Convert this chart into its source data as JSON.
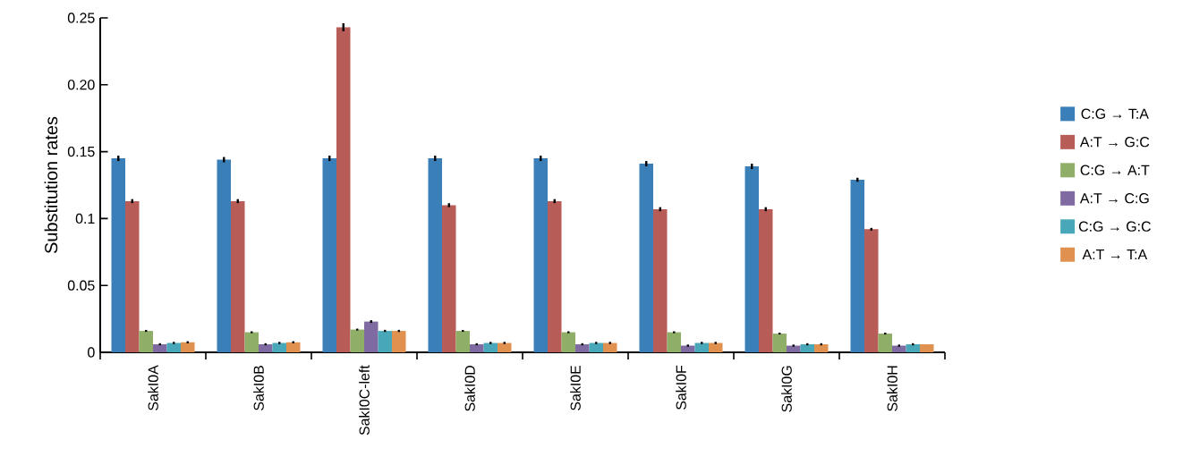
{
  "chart_data": {
    "type": "bar",
    "ylabel": "Substitution rates",
    "categories": [
      "SakI0A",
      "SakI0B",
      "SakI0C-left",
      "SakI0D",
      "SakI0E",
      "SakI0F",
      "SakI0G",
      "SakI0H"
    ],
    "series": [
      {
        "name": "C:G → T:A",
        "color": "#3a7fb8",
        "values": [
          0.145,
          0.144,
          0.145,
          0.145,
          0.145,
          0.141,
          0.139,
          0.129
        ],
        "errors": [
          0.002,
          0.002,
          0.002,
          0.002,
          0.002,
          0.002,
          0.002,
          0.0015
        ]
      },
      {
        "name": "A:T → G:C",
        "color": "#b85c58",
        "values": [
          0.113,
          0.113,
          0.243,
          0.11,
          0.113,
          0.107,
          0.107,
          0.092
        ],
        "errors": [
          0.0015,
          0.0015,
          0.003,
          0.0015,
          0.0015,
          0.0015,
          0.0015,
          0.001
        ]
      },
      {
        "name": "C:G → A:T",
        "color": "#8fae67",
        "values": [
          0.016,
          0.015,
          0.017,
          0.016,
          0.015,
          0.015,
          0.014,
          0.014
        ],
        "errors": [
          0.0007,
          0.0007,
          0.0007,
          0.0007,
          0.0007,
          0.0007,
          0.0007,
          0.0007
        ]
      },
      {
        "name": "A:T → C:G",
        "color": "#7f6aa2",
        "values": [
          0.006,
          0.006,
          0.023,
          0.006,
          0.006,
          0.005,
          0.005,
          0.005
        ],
        "errors": [
          0.0008,
          0.0008,
          0.001,
          0.0008,
          0.0008,
          0.0008,
          0.0008,
          0.0008
        ]
      },
      {
        "name": "C:G → G:C",
        "color": "#48a7b8",
        "values": [
          0.007,
          0.007,
          0.016,
          0.007,
          0.007,
          0.007,
          0.006,
          0.006
        ],
        "errors": [
          0.0008,
          0.0008,
          0.0008,
          0.0008,
          0.0008,
          0.0008,
          0.0008,
          0.0008
        ]
      },
      {
        "name": "A:T → T:A",
        "color": "#e0914f",
        "values": [
          0.0075,
          0.0075,
          0.016,
          0.007,
          0.007,
          0.007,
          0.006,
          0.006
        ],
        "errors": [
          0.0008,
          0.0008,
          0.0008,
          0.0008,
          0.0008,
          0.0008,
          0.0008,
          null
        ]
      }
    ],
    "ylim": [
      0,
      0.25
    ],
    "yticks": [
      0,
      0.05,
      0.1,
      0.15,
      {
        "value": 0.2,
        "label": "0.20"
      },
      0.25
    ],
    "legend": "right",
    "grid": false
  }
}
